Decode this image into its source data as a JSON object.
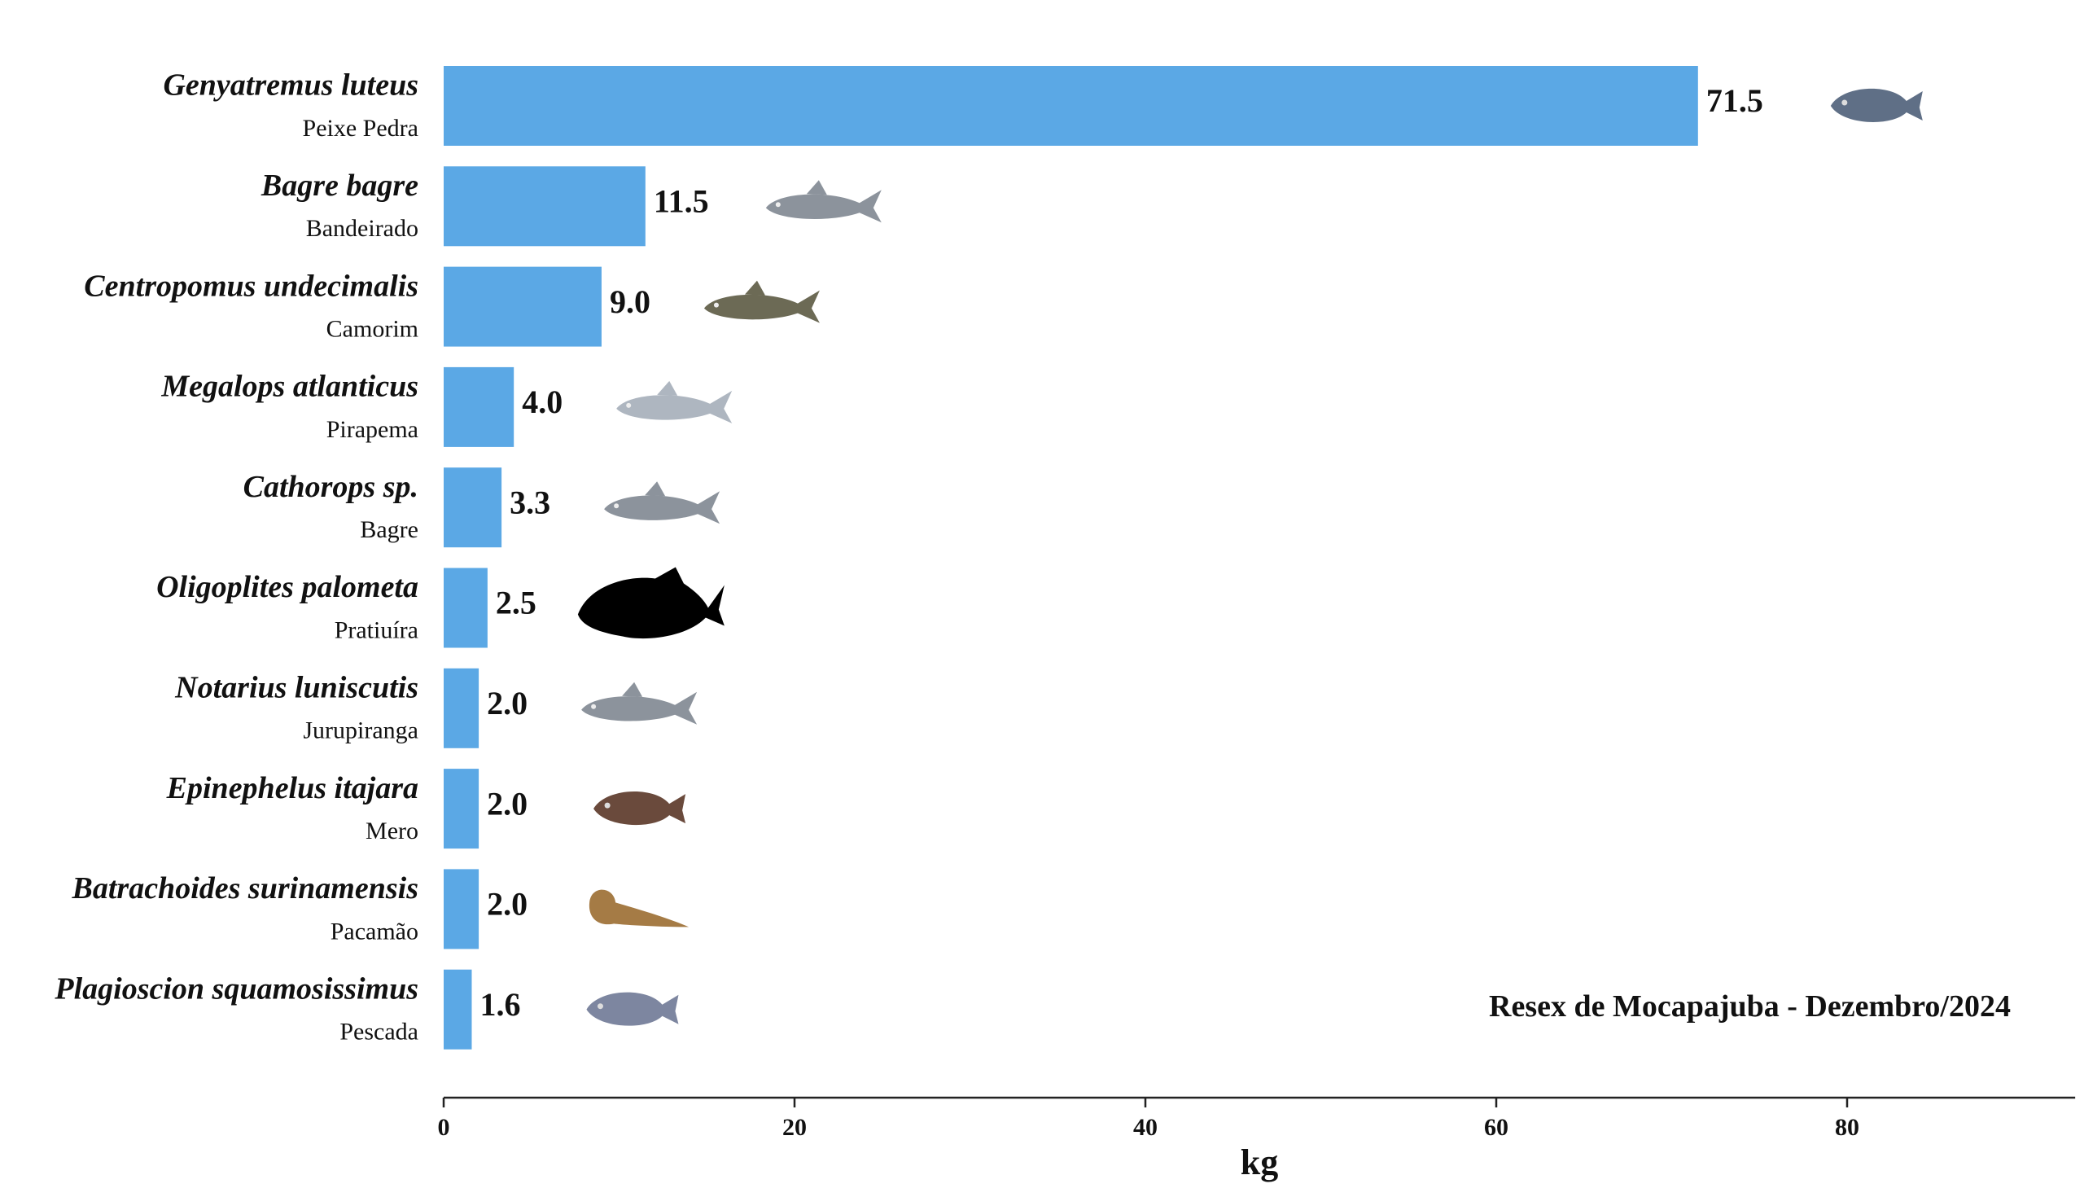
{
  "chart_data": {
    "type": "bar",
    "orientation": "horizontal",
    "categories": [
      {
        "scientific": "Genyatremus luteus",
        "common": "Peixe Pedra"
      },
      {
        "scientific": "Bagre bagre",
        "common": "Bandeirado"
      },
      {
        "scientific": "Centropomus undecimalis",
        "common": "Camorim"
      },
      {
        "scientific": "Megalops atlanticus",
        "common": "Pirapema"
      },
      {
        "scientific": "Cathorops sp.",
        "common": "Bagre"
      },
      {
        "scientific": "Oligoplites palometa",
        "common": "Pratiuíra"
      },
      {
        "scientific": "Notarius luniscutis",
        "common": "Jurupiranga"
      },
      {
        "scientific": "Epinephelus itajara",
        "common": "Mero"
      },
      {
        "scientific": "Batrachoides surinamensis",
        "common": "Pacamão"
      },
      {
        "scientific": "Plagioscion squamosissimus",
        "common": "Pescada"
      }
    ],
    "values": [
      71.5,
      11.5,
      9.0,
      4.0,
      3.3,
      2.5,
      2.0,
      2.0,
      2.0,
      1.6
    ],
    "value_labels": [
      "71.5",
      "11.5",
      "9.0",
      "4.0",
      "3.3",
      "2.5",
      "2.0",
      "2.0",
      "2.0",
      "1.6"
    ],
    "icons": [
      "fish-photo-icon",
      "catfish-photo-icon",
      "snook-photo-icon",
      "tarpon-photo-icon",
      "catfish-photo-icon",
      "fish-silhouette-icon",
      "catfish-photo-icon",
      "grouper-photo-icon",
      "toadfish-photo-icon",
      "croaker-photo-icon"
    ],
    "xlabel": "kg",
    "ylabel": "",
    "xticks": [
      0,
      20,
      40,
      60,
      80
    ],
    "xlim": [
      0,
      93
    ],
    "annotation": "Resex de Mocapajuba - Dezembro/2024",
    "bar_color": "#5ba8e5",
    "grid": false,
    "legend": "none"
  }
}
